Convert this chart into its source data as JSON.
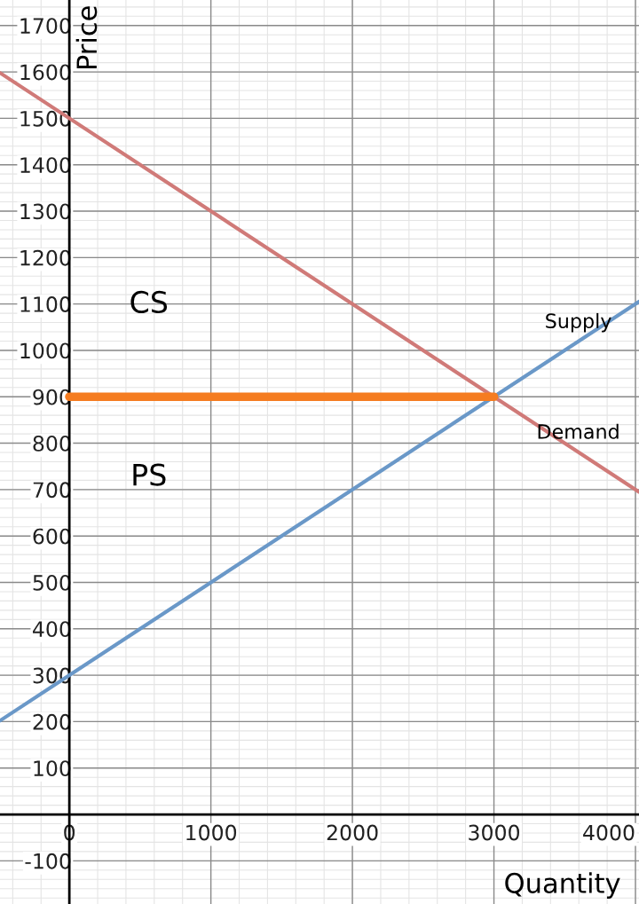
{
  "chart_data": {
    "type": "line",
    "xlabel": "Quantity",
    "ylabel": "Price",
    "xlim": [
      -490,
      4025
    ],
    "ylim": [
      -193,
      1755
    ],
    "xticks": [
      0,
      1000,
      2000,
      3000,
      4000
    ],
    "yticks": [
      -100,
      100,
      200,
      300,
      400,
      500,
      600,
      700,
      800,
      900,
      1000,
      1100,
      1200,
      1300,
      1400,
      1500,
      1600,
      1700
    ],
    "grid": true,
    "legend": false,
    "marker": "none",
    "line_style": "solid",
    "series": [
      {
        "name": "Demand",
        "color": "#d07a78",
        "x": [
          -490,
          4025
        ],
        "values": [
          1598,
          695
        ]
      },
      {
        "name": "Supply",
        "color": "#6a98c8",
        "x": [
          -490,
          4025
        ],
        "values": [
          202,
          1105
        ]
      },
      {
        "color": "#f57c20",
        "x": [
          0,
          3000
        ],
        "values": [
          900,
          900
        ]
      }
    ],
    "annotations": [
      "CS",
      "PS"
    ]
  }
}
